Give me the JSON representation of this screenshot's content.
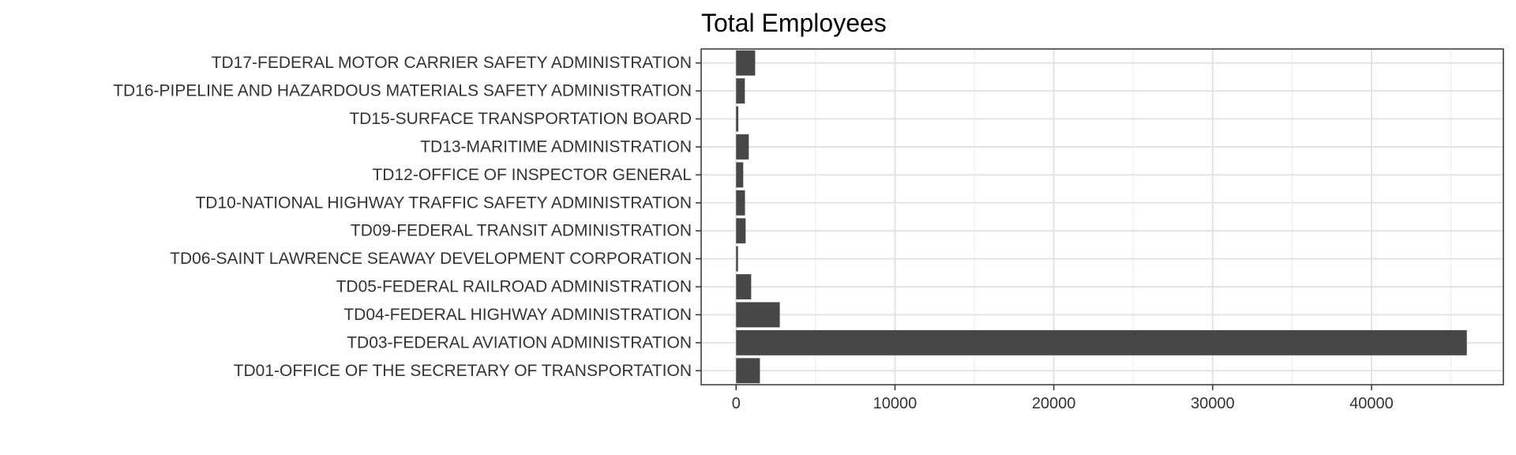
{
  "chart_data": {
    "type": "bar",
    "orientation": "horizontal",
    "title": "Total Employees",
    "xlabel": "",
    "ylabel": "",
    "xlim": [
      -2200,
      48300
    ],
    "x_ticks": [
      0,
      10000,
      20000,
      30000,
      40000
    ],
    "x_tick_labels": [
      "0",
      "10000",
      "20000",
      "30000",
      "40000"
    ],
    "grid": true,
    "legend": "none",
    "bar_color": "#474747",
    "categories": [
      "TD01-OFFICE OF THE SECRETARY OF TRANSPORTATION",
      "TD03-FEDERAL AVIATION ADMINISTRATION",
      "TD04-FEDERAL HIGHWAY ADMINISTRATION",
      "TD05-FEDERAL RAILROAD ADMINISTRATION",
      "TD06-SAINT LAWRENCE SEAWAY DEVELOPMENT CORPORATION",
      "TD09-FEDERAL TRANSIT ADMINISTRATION",
      "TD10-NATIONAL HIGHWAY TRAFFIC SAFETY ADMINISTRATION",
      "TD12-OFFICE OF INSPECTOR GENERAL",
      "TD13-MARITIME ADMINISTRATION",
      "TD15-SURFACE TRANSPORTATION BOARD",
      "TD16-PIPELINE AND HAZARDOUS MATERIALS SAFETY ADMINISTRATION",
      "TD17-FEDERAL MOTOR CARRIER SAFETY ADMINISTRATION"
    ],
    "values": [
      1500,
      46000,
      2750,
      950,
      120,
      600,
      560,
      450,
      800,
      140,
      550,
      1200
    ]
  }
}
